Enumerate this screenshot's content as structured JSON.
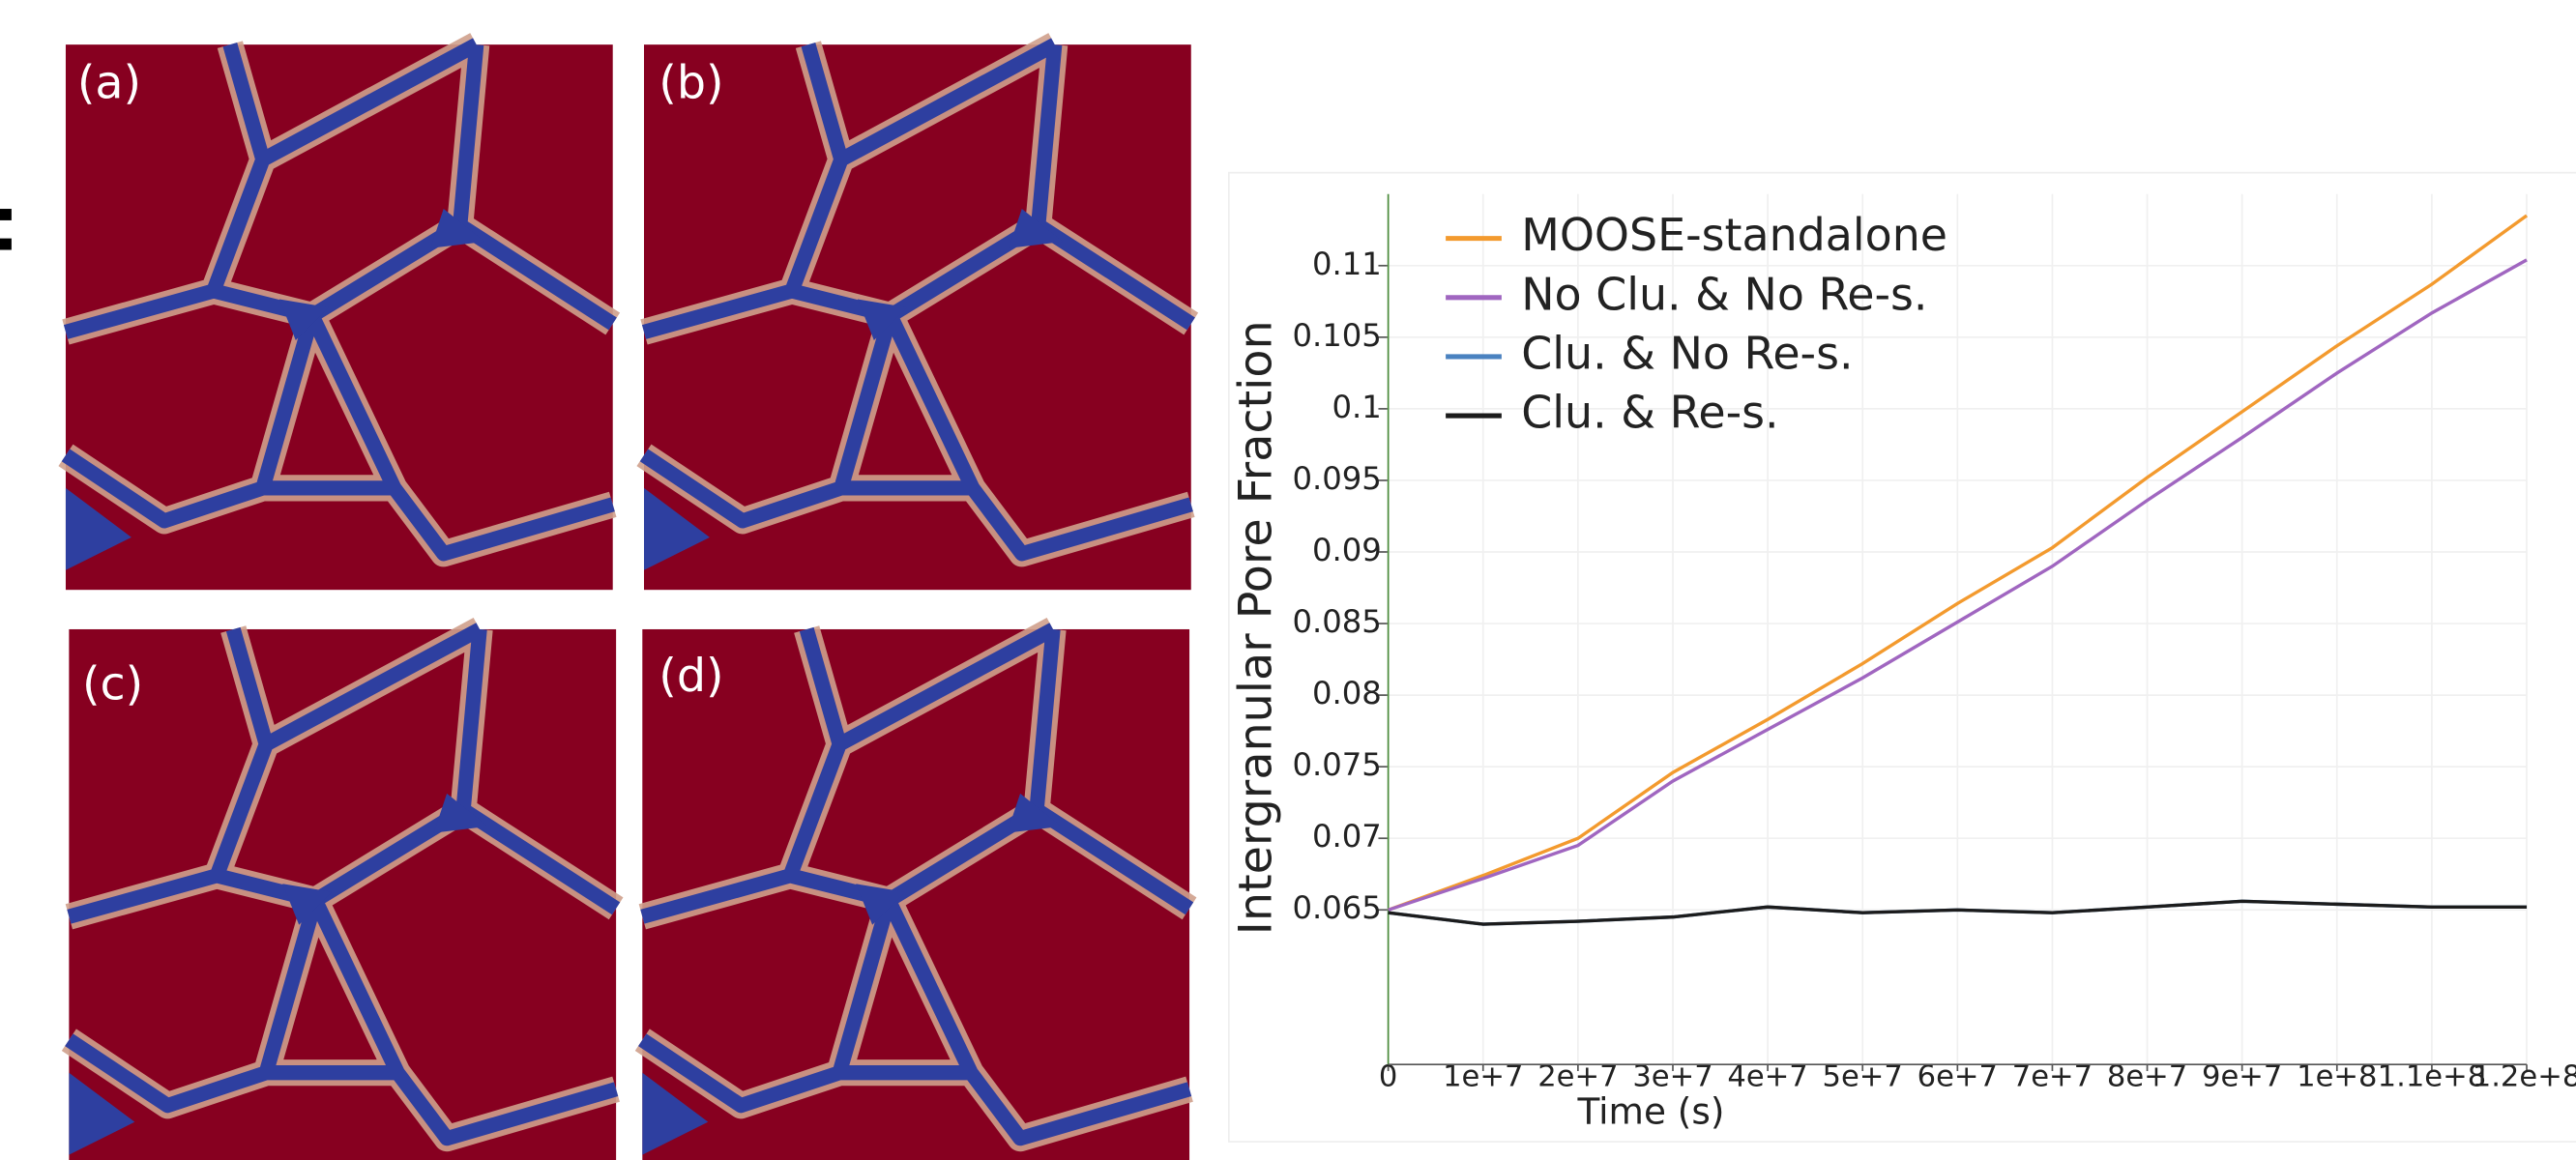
{
  "panels": [
    {
      "label": "(a)"
    },
    {
      "label": "(b)"
    },
    {
      "label": "(c)"
    },
    {
      "label": "(d)"
    }
  ],
  "chart_data": {
    "type": "line",
    "x_label": "Time (s)",
    "y_label": "Intergranular Pore Fraction",
    "x": [
      0,
      10000000,
      20000000,
      30000000,
      40000000,
      50000000,
      60000000,
      70000000,
      80000000,
      90000000,
      100000000,
      110000000,
      120000000
    ],
    "series": [
      {
        "name": "MOOSE-standalone",
        "color": "#f39a2e",
        "values": [
          0.065,
          0.0674,
          0.07,
          0.0746,
          0.0783,
          0.0822,
          0.0864,
          0.0903,
          0.0952,
          0.0998,
          0.1044,
          0.1087,
          0.1135
        ]
      },
      {
        "name": "No Clu. & No Re-s.",
        "color": "#a066c0",
        "values": [
          0.065,
          0.0672,
          0.0695,
          0.074,
          0.0776,
          0.0812,
          0.0851,
          0.089,
          0.0936,
          0.098,
          0.1025,
          0.1067,
          0.1104
        ]
      },
      {
        "name": "Clu. & No Re-s.",
        "color": "#4a82c0",
        "values": [
          0.0648,
          0.064,
          0.0642,
          0.0645,
          0.0652,
          0.0648,
          0.065,
          0.0648,
          0.0652,
          0.0656,
          0.0654,
          0.0652,
          0.0652
        ]
      },
      {
        "name": "Clu. & Re-s.",
        "color": "#1c1c1c",
        "values": [
          0.0648,
          0.064,
          0.0642,
          0.0645,
          0.0652,
          0.0648,
          0.065,
          0.0648,
          0.0652,
          0.0656,
          0.0654,
          0.0652,
          0.0652
        ]
      }
    ],
    "xlim": [
      0,
      120000000
    ],
    "ylim": [
      0.0542,
      0.115
    ],
    "xticks": [
      0,
      {
        "value": 10000000,
        "label": "1e+7"
      },
      {
        "value": 20000000,
        "label": "2e+7"
      },
      {
        "value": 30000000,
        "label": "3e+7"
      },
      {
        "value": 40000000,
        "label": "4e+7"
      },
      {
        "value": 50000000,
        "label": "5e+7"
      },
      {
        "value": 60000000,
        "label": "6e+7"
      },
      {
        "value": 70000000,
        "label": "7e+7"
      },
      {
        "value": 80000000,
        "label": "8e+7"
      },
      {
        "value": 90000000,
        "label": "9e+7"
      },
      {
        "value": 100000000,
        "label": "1e+8"
      },
      {
        "value": 110000000,
        "label": "1.1e+8"
      },
      {
        "value": 120000000,
        "label": "1.2e+8"
      }
    ],
    "yticks": [
      0.065,
      0.07,
      0.075,
      0.08,
      0.085,
      0.09,
      0.095,
      0.1,
      0.105,
      0.11
    ],
    "grid": true,
    "legend": "upper left"
  }
}
